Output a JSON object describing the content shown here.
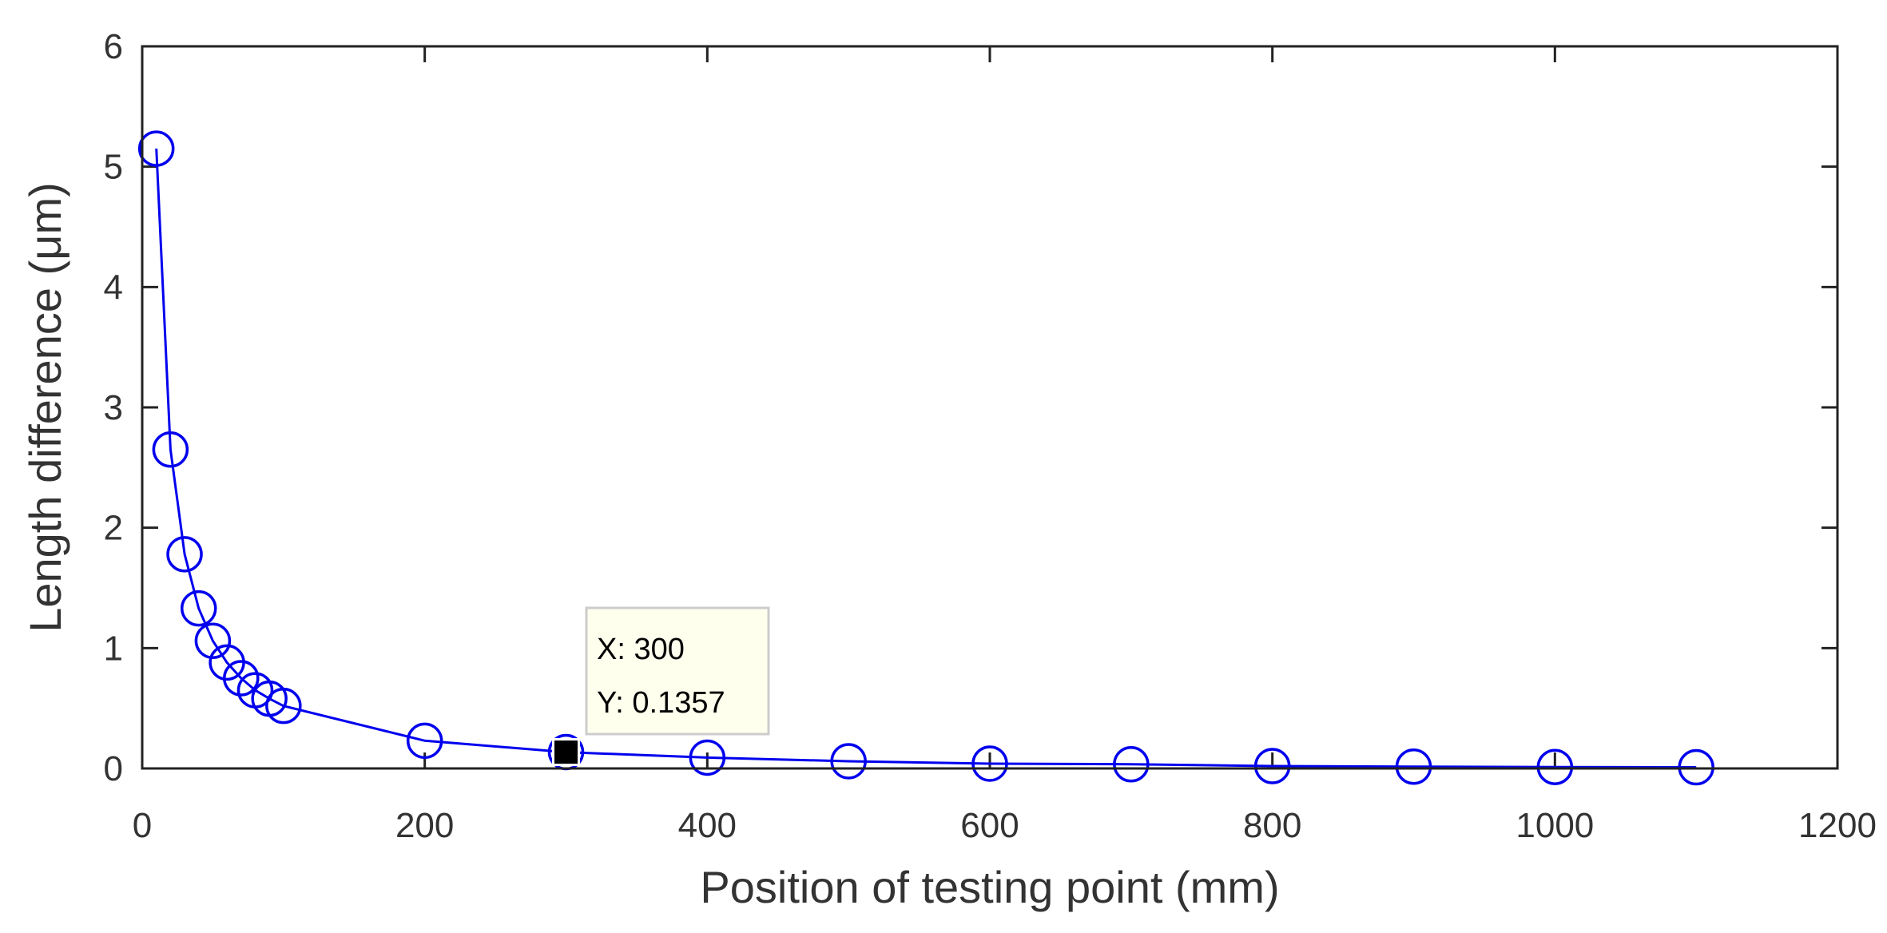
{
  "chart_data": {
    "type": "line",
    "title": "",
    "xlabel": "Position of testing point (mm)",
    "ylabel": "Length difference (μm)",
    "xlim": [
      0,
      1200
    ],
    "ylim": [
      0,
      6
    ],
    "xticks": [
      0,
      200,
      400,
      600,
      800,
      1000,
      1200
    ],
    "yticks": [
      0,
      1,
      2,
      3,
      4,
      5,
      6
    ],
    "grid": false,
    "series": [
      {
        "color": "#0000ee",
        "marker": "circle-open",
        "x": [
          10,
          20,
          30,
          40,
          50,
          60,
          70,
          80,
          90,
          100,
          200,
          300,
          400,
          500,
          600,
          700,
          800,
          900,
          1000,
          1100
        ],
        "y": [
          5.15,
          2.65,
          1.78,
          1.33,
          1.06,
          0.88,
          0.75,
          0.65,
          0.58,
          0.52,
          0.23,
          0.1357,
          0.09,
          0.06,
          0.04,
          0.035,
          0.02,
          0.015,
          0.012,
          0.01
        ]
      }
    ],
    "datatip": {
      "x": 300,
      "y": 0.1357,
      "x_text": "X: 300",
      "y_text": "Y: 0.1357"
    }
  }
}
